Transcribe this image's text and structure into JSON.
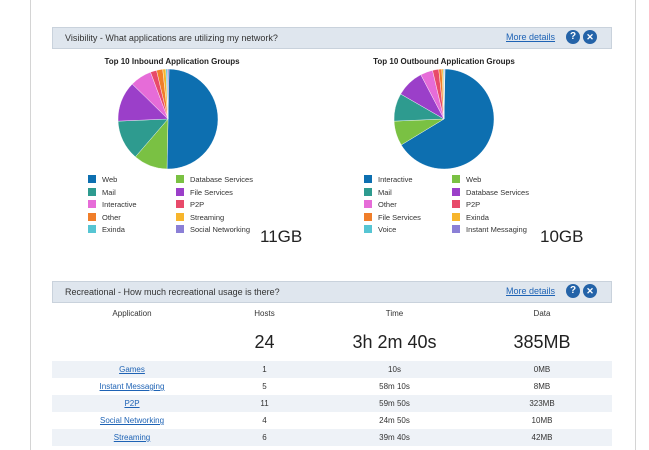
{
  "visibility": {
    "header": "Visibility - What applications are utilizing my network?",
    "more_details": "More details",
    "inbound": {
      "title": "Top 10 Inbound Application Groups",
      "total": "11GB",
      "legend": [
        {
          "label": "Web",
          "color": "#0d6fb0"
        },
        {
          "label": "Database Services",
          "color": "#7ac143"
        },
        {
          "label": "Mail",
          "color": "#2e9b8f"
        },
        {
          "label": "File Services",
          "color": "#9b3fc9"
        },
        {
          "label": "Interactive",
          "color": "#e66cd8"
        },
        {
          "label": "P2P",
          "color": "#e84a6a"
        },
        {
          "label": "Other",
          "color": "#f07e2a"
        },
        {
          "label": "Streaming",
          "color": "#f7b52c"
        },
        {
          "label": "Exinda",
          "color": "#56c5d3"
        },
        {
          "label": "Social Networking",
          "color": "#8b7fd6"
        }
      ],
      "slices": [
        {
          "label": "Web",
          "fraction": 0.5,
          "color": "#0d6fb0"
        },
        {
          "label": "Database Services",
          "fraction": 0.11,
          "color": "#7ac143"
        },
        {
          "label": "Mail",
          "fraction": 0.13,
          "color": "#2e9b8f"
        },
        {
          "label": "File Services",
          "fraction": 0.13,
          "color": "#9b3fc9"
        },
        {
          "label": "Interactive",
          "fraction": 0.07,
          "color": "#e66cd8"
        },
        {
          "label": "P2P",
          "fraction": 0.02,
          "color": "#e84a6a"
        },
        {
          "label": "Other",
          "fraction": 0.02,
          "color": "#f07e2a"
        },
        {
          "label": "Streaming",
          "fraction": 0.01,
          "color": "#f7b52c"
        },
        {
          "label": "Exinda",
          "fraction": 0.005,
          "color": "#56c5d3"
        },
        {
          "label": "Social Networking",
          "fraction": 0.005,
          "color": "#8b7fd6"
        }
      ]
    },
    "outbound": {
      "title": "Top 10 Outbound Application Groups",
      "total": "10GB",
      "legend": [
        {
          "label": "Interactive",
          "color": "#0d6fb0"
        },
        {
          "label": "Web",
          "color": "#7ac143"
        },
        {
          "label": "Mail",
          "color": "#2e9b8f"
        },
        {
          "label": "Database Services",
          "color": "#9b3fc9"
        },
        {
          "label": "Other",
          "color": "#e66cd8"
        },
        {
          "label": "P2P",
          "color": "#e84a6a"
        },
        {
          "label": "File Services",
          "color": "#f07e2a"
        },
        {
          "label": "Exinda",
          "color": "#f7b52c"
        },
        {
          "label": "Voice",
          "color": "#56c5d3"
        },
        {
          "label": "Instant Messaging",
          "color": "#8b7fd6"
        }
      ],
      "slices": [
        {
          "label": "Interactive",
          "fraction": 0.66,
          "color": "#0d6fb0"
        },
        {
          "label": "Web",
          "fraction": 0.08,
          "color": "#7ac143"
        },
        {
          "label": "Mail",
          "fraction": 0.09,
          "color": "#2e9b8f"
        },
        {
          "label": "Database Services",
          "fraction": 0.09,
          "color": "#9b3fc9"
        },
        {
          "label": "Other",
          "fraction": 0.04,
          "color": "#e66cd8"
        },
        {
          "label": "P2P",
          "fraction": 0.02,
          "color": "#e84a6a"
        },
        {
          "label": "File Services",
          "fraction": 0.01,
          "color": "#f07e2a"
        },
        {
          "label": "Exinda",
          "fraction": 0.005,
          "color": "#f7b52c"
        },
        {
          "label": "Voice",
          "fraction": 0.003,
          "color": "#56c5d3"
        },
        {
          "label": "Instant Messaging",
          "fraction": 0.002,
          "color": "#8b7fd6"
        }
      ]
    }
  },
  "recreational": {
    "header": "Recreational - How much recreational usage is there?",
    "more_details": "More details",
    "columns": [
      "Application",
      "Hosts",
      "Time",
      "Data"
    ],
    "totals": {
      "hosts": "24",
      "time": "3h 2m 40s",
      "data": "385MB"
    },
    "rows": [
      {
        "app": "Games",
        "hosts": "1",
        "time": "10s",
        "data": "0MB"
      },
      {
        "app": "Instant Messaging",
        "hosts": "5",
        "time": "58m 10s",
        "data": "8MB"
      },
      {
        "app": "P2P",
        "hosts": "11",
        "time": "59m 50s",
        "data": "323MB"
      },
      {
        "app": "Social Networking",
        "hosts": "4",
        "time": "24m 50s",
        "data": "10MB"
      },
      {
        "app": "Streaming",
        "hosts": "6",
        "time": "39m 40s",
        "data": "42MB"
      }
    ]
  },
  "icons": {
    "help": "?",
    "close": "✕"
  }
}
